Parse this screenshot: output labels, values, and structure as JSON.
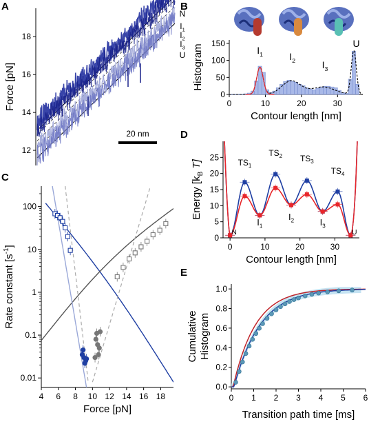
{
  "figure": {
    "panel_labels": [
      "A",
      "B",
      "C",
      "D",
      "E"
    ]
  },
  "chart_data": [
    {
      "panel": "A",
      "type": "line",
      "ylabel": "Force [pN]",
      "yticks": [
        12,
        14,
        16,
        18
      ],
      "ylim": [
        11.2,
        19.5
      ],
      "scale_bar": "20 nm",
      "state_labels": [
        {
          "label": "N",
          "color": "#000000"
        },
        {
          "label": "I1",
          "color": "#e8262a"
        },
        {
          "label": "I2",
          "color": "#f2a93b"
        },
        {
          "label": "I3",
          "color": "#5bb3e0"
        },
        {
          "label": "U",
          "color": "#000000"
        }
      ],
      "state_offsets": [
        0,
        0.35,
        0.62,
        0.85,
        1.0
      ]
    },
    {
      "panel": "B",
      "type": "bar",
      "xlabel": "Contour length [nm]",
      "ylabel": "Histogram",
      "xlim": [
        0,
        37
      ],
      "ylim": [
        0,
        160
      ],
      "xticks": [
        0,
        10,
        20,
        30
      ],
      "yticks": [
        0,
        50,
        100,
        150
      ],
      "bin_width": 1,
      "bins": [
        0.5,
        1.5,
        2.5,
        3.5,
        4.5,
        5.5,
        6.5,
        7.5,
        8.5,
        9.5,
        10.5,
        11.5,
        12.5,
        13.5,
        14.5,
        15.5,
        16.5,
        17.5,
        18.5,
        19.5,
        20.5,
        21.5,
        22.5,
        23.5,
        24.5,
        25.5,
        26.5,
        27.5,
        28.5,
        29.5,
        30.5,
        31.5,
        32.5,
        33.5,
        34.5,
        35.5
      ],
      "counts": [
        1,
        1,
        1,
        1,
        2,
        4,
        10,
        40,
        83,
        65,
        14,
        6,
        10,
        20,
        30,
        38,
        42,
        40,
        36,
        30,
        26,
        20,
        16,
        14,
        18,
        22,
        24,
        24,
        22,
        20,
        12,
        5,
        3,
        45,
        127,
        30
      ],
      "fit_peaks": [
        {
          "center": 8.5,
          "height": 80,
          "width": 0.9
        },
        {
          "center": 17.2,
          "height": 40,
          "width": 2.6
        },
        {
          "center": 26.0,
          "height": 22,
          "width": 3.2
        },
        {
          "center": 34.5,
          "height": 128,
          "width": 0.7
        }
      ],
      "state_labels": [
        {
          "label": "I1",
          "x": 8.5,
          "color": "#e8262a"
        },
        {
          "label": "I2",
          "x": 17.5,
          "color": "#f2a93b"
        },
        {
          "label": "I3",
          "x": 26.5,
          "color": "#5bb3e0"
        },
        {
          "label": "U",
          "x": 35.2,
          "color": "#000000"
        }
      ],
      "structure_colors": [
        "#b53a2f",
        "#d8893f",
        "#59c0b4"
      ]
    },
    {
      "panel": "C",
      "type": "scatter",
      "xlabel": "Force [pN]",
      "ylabel": "Rate constant [s",
      "ylabel_sup": "-1",
      "ylabel_end": "]",
      "xlim": [
        4,
        19.5
      ],
      "ylim": [
        0.006,
        300
      ],
      "yscale": "log",
      "xticks": [
        4,
        6,
        8,
        10,
        12,
        14,
        16,
        18
      ],
      "yticks": [
        0.01,
        0.1,
        1,
        10,
        100
      ],
      "ytick_labels": [
        "0.01",
        "0.1",
        "1",
        "10",
        "100"
      ],
      "series": [
        {
          "marker": "open-square",
          "color": "#1f3fa3",
          "x": [
            5.6,
            5.9,
            6.2,
            6.5,
            6.8,
            7.1,
            7.4
          ],
          "y": [
            68,
            62,
            55,
            45,
            32,
            20,
            9.5
          ]
        },
        {
          "marker": "open-square",
          "color": "#777777",
          "x": [
            12.9,
            13.6,
            14.3,
            15.0,
            15.7,
            16.4,
            17.1,
            17.9,
            18.6
          ],
          "y": [
            2.3,
            3.8,
            6.0,
            8.3,
            11.5,
            15.5,
            22,
            28,
            40
          ]
        },
        {
          "marker": "filled-circle",
          "color": "#1f3fa3",
          "x": [
            8.8,
            8.9,
            9.0,
            9.1,
            9.2,
            9.3
          ],
          "y": [
            0.035,
            0.045,
            0.03,
            0.022,
            0.025,
            0.028
          ]
        },
        {
          "marker": "filled-circle",
          "color": "#777777",
          "x": [
            10.3,
            10.4,
            10.5,
            10.6,
            10.7,
            10.8,
            10.9
          ],
          "y": [
            0.03,
            0.08,
            0.11,
            0.06,
            0.035,
            0.05,
            0.12
          ]
        }
      ],
      "curves": [
        {
          "color": "#1f3fa3",
          "x": [
            4.5,
            19.5
          ],
          "y": [
            120,
            0.008
          ]
        },
        {
          "color": "#555555",
          "x": [
            4.0,
            19.5
          ],
          "y": [
            0.075,
            90
          ]
        },
        {
          "color": "#9aa8d8",
          "x": [
            5.3,
            9.3
          ],
          "y": [
            300,
            0.006
          ]
        },
        {
          "color": "#aaaaaa",
          "dashed": true,
          "x": [
            6.8,
            9.5
          ],
          "y": [
            300,
            0.008
          ]
        },
        {
          "color": "#aaaaaa",
          "dashed": true,
          "x": [
            10.0,
            16.8
          ],
          "y": [
            0.008,
            300
          ]
        }
      ]
    },
    {
      "panel": "D",
      "type": "line",
      "xlabel": "Contour length [nm]",
      "ylabel": "Energy [k",
      "ylabel_sub": "B",
      "ylabel_end": "T]",
      "xlim": [
        -2,
        37
      ],
      "ylim": [
        0,
        30
      ],
      "xticks": [
        0,
        10,
        20,
        30
      ],
      "yticks": [
        0,
        5,
        10,
        15,
        20,
        25
      ],
      "x": [
        0,
        4.2,
        8.5,
        13,
        17.5,
        22,
        26.5,
        30.8,
        34.5
      ],
      "series": [
        {
          "name": "",
          "color": "#1f3fa3",
          "y": [
            0.8,
            17.3,
            7.0,
            19.8,
            10.2,
            17.8,
            8.2,
            14.4,
            0.8
          ]
        },
        {
          "name": "",
          "color": "#e8262a",
          "y": [
            0.8,
            13.0,
            7.0,
            15.5,
            10.2,
            13.5,
            8.2,
            10.4,
            0.8
          ]
        }
      ],
      "ts_labels": [
        {
          "label": "TS",
          "sub": "1",
          "x": 4.2
        },
        {
          "label": "TS",
          "sub": "2",
          "x": 13
        },
        {
          "label": "TS",
          "sub": "3",
          "x": 22
        },
        {
          "label": "TS",
          "sub": "4",
          "x": 30.8
        }
      ],
      "state_labels": [
        {
          "label": "N",
          "x": 1.2,
          "color": "#000000"
        },
        {
          "label": "I1",
          "x": 8.5,
          "color": "#e8262a"
        },
        {
          "label": "I2",
          "x": 17.5,
          "color": "#f2a93b"
        },
        {
          "label": "I3",
          "x": 26.5,
          "color": "#5bb3e0"
        },
        {
          "label": "U",
          "x": 35.6,
          "color": "#000000"
        }
      ]
    },
    {
      "panel": "E",
      "type": "line",
      "xlabel": "Transition path time [ms]",
      "ylabel_line1": "Cumulative",
      "ylabel_line2": "Histogram",
      "xlim": [
        0,
        6
      ],
      "ylim": [
        -0.02,
        1.05
      ],
      "xticks": [
        0,
        1,
        2,
        3,
        4,
        5,
        6
      ],
      "yticks": [
        0.0,
        0.2,
        0.4,
        0.6,
        0.8,
        1.0
      ],
      "ytick_labels": [
        "0.0",
        "0.2",
        "0.4",
        "0.6",
        "0.8",
        "1.0"
      ],
      "data_points_x": [
        0.2,
        0.35,
        0.5,
        0.65,
        0.8,
        0.95,
        1.1,
        1.25,
        1.4,
        1.6,
        1.8,
        2.0,
        2.2,
        2.4,
        2.6,
        2.8,
        3.0,
        3.3,
        3.6,
        3.9,
        4.3,
        4.8,
        5.4
      ],
      "curves": [
        {
          "color": "#c0252b",
          "tau": 1.05,
          "delay": 0.08
        },
        {
          "color": "#1f3fa3",
          "tau": 1.2,
          "delay": 0.12
        }
      ]
    }
  ]
}
